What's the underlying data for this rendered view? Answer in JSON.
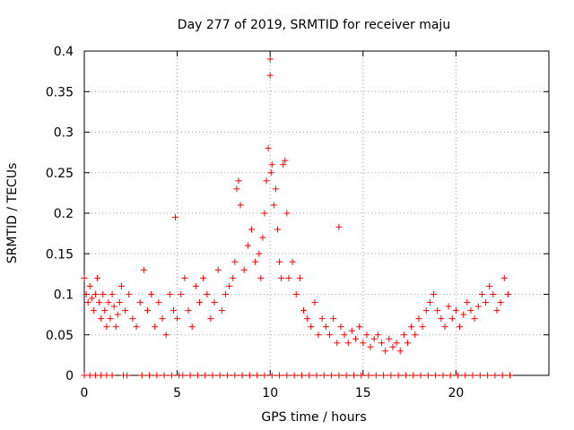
{
  "chart_data": {
    "type": "scatter",
    "title": "Day 277 of 2019, SRMTID for receiver maju",
    "xlabel": "GPS time / hours",
    "ylabel": "SRMTID / TECUs",
    "xlim": [
      0,
      25
    ],
    "ylim": [
      0,
      0.4
    ],
    "xticks": [
      0,
      5,
      10,
      15,
      20
    ],
    "xtick_labels": [
      "0",
      "5",
      "10",
      "15",
      "20"
    ],
    "yticks": [
      0,
      0.05,
      0.1,
      0.15,
      0.2,
      0.25,
      0.3,
      0.35,
      0.4
    ],
    "ytick_labels": [
      "0",
      "0.05",
      "0.1",
      "0.15",
      "0.2",
      "0.25",
      "0.3",
      "0.35",
      "0.4"
    ],
    "grid": true,
    "marker": "+",
    "series": [
      {
        "name": "SRMTID",
        "color": "#ff0000",
        "x": [
          0.0,
          0.1,
          0.2,
          0.3,
          0.4,
          0.5,
          0.6,
          0.7,
          0.8,
          0.9,
          1.0,
          1.1,
          1.2,
          1.3,
          1.4,
          1.5,
          1.6,
          1.7,
          1.8,
          1.9,
          2.0,
          2.2,
          2.4,
          2.6,
          2.8,
          3.0,
          3.2,
          3.4,
          3.6,
          3.8,
          4.0,
          4.2,
          4.4,
          4.6,
          4.8,
          4.9,
          5.0,
          5.2,
          5.4,
          5.6,
          5.8,
          6.0,
          6.2,
          6.4,
          6.6,
          6.8,
          7.0,
          7.2,
          7.4,
          7.6,
          7.8,
          8.0,
          8.1,
          8.2,
          8.3,
          8.4,
          8.6,
          8.8,
          9.0,
          9.2,
          9.4,
          9.5,
          9.6,
          9.7,
          9.8,
          9.9,
          10.0,
          10.0,
          10.05,
          10.1,
          10.2,
          10.3,
          10.4,
          10.5,
          10.6,
          10.7,
          10.8,
          10.9,
          11.0,
          11.2,
          11.4,
          11.6,
          11.8,
          12.0,
          12.2,
          12.4,
          12.6,
          12.8,
          13.0,
          13.2,
          13.4,
          13.6,
          13.7,
          13.8,
          14.0,
          14.2,
          14.4,
          14.6,
          14.8,
          15.0,
          15.2,
          15.4,
          15.6,
          15.8,
          16.0,
          16.2,
          16.4,
          16.6,
          16.8,
          17.0,
          17.2,
          17.4,
          17.6,
          17.8,
          18.0,
          18.2,
          18.4,
          18.6,
          18.8,
          19.0,
          19.2,
          19.4,
          19.6,
          19.8,
          20.0,
          20.2,
          20.4,
          20.6,
          20.8,
          21.0,
          21.2,
          21.4,
          21.6,
          21.8,
          22.0,
          22.2,
          22.4,
          22.6,
          22.8,
          0.0,
          0.3,
          0.6,
          0.9,
          1.2,
          1.5,
          2.1,
          2.3,
          3.1,
          3.5,
          3.9,
          4.3,
          4.7,
          5.1,
          5.3,
          5.7,
          6.1,
          6.5,
          6.9,
          7.3,
          7.7,
          8.1,
          8.5,
          8.9,
          9.3,
          9.7,
          10.1,
          10.5,
          10.9,
          11.3,
          11.7,
          12.1,
          12.5,
          12.9,
          13.3,
          13.7,
          14.1,
          14.5,
          14.9,
          15.3,
          15.7,
          16.1,
          16.5,
          16.9,
          17.3,
          17.7,
          18.1,
          18.5,
          18.9,
          19.3,
          19.7,
          20.1,
          20.5,
          20.9,
          21.3,
          21.7,
          22.1,
          22.5,
          22.9
        ],
        "y": [
          0.12,
          0.1,
          0.09,
          0.11,
          0.095,
          0.08,
          0.1,
          0.12,
          0.09,
          0.07,
          0.1,
          0.08,
          0.06,
          0.09,
          0.07,
          0.1,
          0.085,
          0.06,
          0.075,
          0.09,
          0.11,
          0.08,
          0.1,
          0.07,
          0.06,
          0.09,
          0.13,
          0.08,
          0.1,
          0.06,
          0.09,
          0.07,
          0.05,
          0.1,
          0.08,
          0.195,
          0.07,
          0.1,
          0.12,
          0.08,
          0.06,
          0.11,
          0.09,
          0.12,
          0.1,
          0.07,
          0.09,
          0.13,
          0.08,
          0.1,
          0.11,
          0.12,
          0.14,
          0.23,
          0.24,
          0.21,
          0.13,
          0.16,
          0.18,
          0.14,
          0.15,
          0.12,
          0.17,
          0.2,
          0.24,
          0.28,
          0.39,
          0.37,
          0.25,
          0.26,
          0.21,
          0.23,
          0.18,
          0.14,
          0.12,
          0.26,
          0.265,
          0.2,
          0.12,
          0.14,
          0.1,
          0.12,
          0.08,
          0.07,
          0.06,
          0.09,
          0.05,
          0.07,
          0.06,
          0.05,
          0.07,
          0.04,
          0.183,
          0.06,
          0.05,
          0.04,
          0.055,
          0.045,
          0.06,
          0.04,
          0.05,
          0.035,
          0.045,
          0.05,
          0.04,
          0.03,
          0.045,
          0.035,
          0.04,
          0.03,
          0.05,
          0.04,
          0.06,
          0.05,
          0.07,
          0.06,
          0.08,
          0.09,
          0.1,
          0.08,
          0.07,
          0.06,
          0.085,
          0.07,
          0.08,
          0.06,
          0.075,
          0.09,
          0.08,
          0.07,
          0.085,
          0.1,
          0.09,
          0.11,
          0.1,
          0.08,
          0.09,
          0.12,
          0.1,
          0.0,
          0.0,
          0.0,
          0.0,
          0.0,
          0.0,
          0.0,
          0.0,
          0.0,
          0.0,
          0.0,
          0.0,
          0.0,
          0.0,
          0.0,
          0.0,
          0.0,
          0.0,
          0.0,
          0.0,
          0.0,
          0.0,
          0.0,
          0.0,
          0.0,
          0.0,
          0.0,
          0.0,
          0.0,
          0.0,
          0.0,
          0.0,
          0.0,
          0.0,
          0.0,
          0.0,
          0.0,
          0.0,
          0.0,
          0.0,
          0.0,
          0.0,
          0.0,
          0.0,
          0.0,
          0.0,
          0.0,
          0.0,
          0.0,
          0.0,
          0.0,
          0.0,
          0.0,
          0.0,
          0.0,
          0.0,
          0.0,
          0.0,
          0.0
        ]
      }
    ]
  }
}
